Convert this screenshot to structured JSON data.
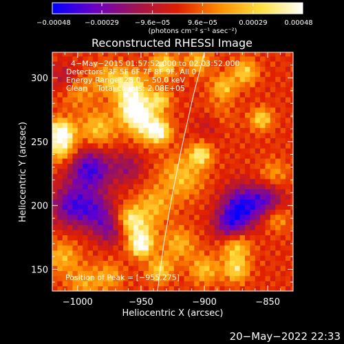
{
  "chart_data": {
    "type": "heatmap",
    "title": "Reconstructed RHESSI Image",
    "xlabel": "Heliocentric X (arcsec)",
    "ylabel": "Heliocentric Y (arcsec)",
    "xlim": [
      -1020,
      -830
    ],
    "ylim": [
      133,
      320
    ],
    "xticks": [
      -1000,
      -950,
      -900,
      -850
    ],
    "yticks": [
      150,
      200,
      250,
      300
    ],
    "xtick_labels": [
      "−1000",
      "−950",
      "−900",
      "−850"
    ],
    "ytick_labels": [
      "150",
      "200",
      "250",
      "300"
    ],
    "colorbar": {
      "min": -0.00048,
      "max": 0.00048,
      "ticks": [
        -0.00048,
        -0.00029,
        -9.6e-05,
        9.6e-05,
        0.00029,
        0.00048
      ],
      "tick_labels": [
        "−0.00048",
        "−0.00029",
        "−9.6e−05",
        "9.6e−05",
        "0.00029",
        "0.00048"
      ],
      "unit_label": "(photons cm⁻² s⁻¹ asec⁻²)",
      "colors": [
        "#0000ff",
        "#6a00c8",
        "#a01450",
        "#e01e00",
        "#ff8c00",
        "#ffe040",
        "#ffffff"
      ]
    },
    "annotations": [
      "4−May−2015 01:57:52.000 to 02:03:52.000",
      "Detectors: 3F 5F 6F 7F 8F 9F, All 0",
      "Energy Range: 25.0 − 50.0 keV",
      "Clean    Total counts: 2.08E+05",
      "Position of Peak = [−955,275]"
    ],
    "peak": {
      "x": -955,
      "y": 275
    },
    "limb_curve": [
      [
        -937,
        133
      ],
      [
        -932,
        170
      ],
      [
        -926,
        205
      ],
      [
        -918,
        245
      ],
      [
        -909,
        285
      ],
      [
        -900,
        320
      ]
    ],
    "blobs": [
      {
        "x": -955,
        "y": 275,
        "v": 0.00048,
        "r": 9
      },
      {
        "x": -958,
        "y": 293,
        "v": 0.00034,
        "r": 9
      },
      {
        "x": -945,
        "y": 262,
        "v": 0.0003,
        "r": 9
      },
      {
        "x": -935,
        "y": 258,
        "v": 0.00036,
        "r": 6
      },
      {
        "x": -1013,
        "y": 258,
        "v": 0.00046,
        "r": 7
      },
      {
        "x": -1013,
        "y": 245,
        "v": 0.00032,
        "r": 8
      },
      {
        "x": -984,
        "y": 260,
        "v": 0.00026,
        "r": 10
      },
      {
        "x": -932,
        "y": 310,
        "v": 0.00032,
        "r": 7
      },
      {
        "x": -935,
        "y": 283,
        "v": 0.0003,
        "r": 6
      },
      {
        "x": -903,
        "y": 240,
        "v": 0.00035,
        "r": 6
      },
      {
        "x": -918,
        "y": 223,
        "v": 0.00024,
        "r": 12
      },
      {
        "x": -958,
        "y": 190,
        "v": 0.0003,
        "r": 7
      },
      {
        "x": -950,
        "y": 168,
        "v": 0.00038,
        "r": 6
      },
      {
        "x": -950,
        "y": 178,
        "v": 0.00028,
        "r": 8
      },
      {
        "x": -940,
        "y": 200,
        "v": 0.00022,
        "r": 10
      },
      {
        "x": -935,
        "y": 150,
        "v": 0.00028,
        "r": 7
      },
      {
        "x": -920,
        "y": 170,
        "v": 0.00022,
        "r": 9
      },
      {
        "x": -875,
        "y": 168,
        "v": 0.00028,
        "r": 8
      },
      {
        "x": -875,
        "y": 150,
        "v": 0.0003,
        "r": 7
      },
      {
        "x": -900,
        "y": 150,
        "v": 0.00024,
        "r": 8
      },
      {
        "x": -855,
        "y": 268,
        "v": 0.0003,
        "r": 6
      },
      {
        "x": -868,
        "y": 305,
        "v": 0.00028,
        "r": 7
      },
      {
        "x": -885,
        "y": 293,
        "v": 0.00025,
        "r": 7
      },
      {
        "x": -905,
        "y": 313,
        "v": 0.00024,
        "r": 7
      },
      {
        "x": -1012,
        "y": 160,
        "v": 0.00022,
        "r": 9
      },
      {
        "x": -995,
        "y": 140,
        "v": 0.00018,
        "r": 9
      },
      {
        "x": -975,
        "y": 145,
        "v": 0.00018,
        "r": 8
      },
      {
        "x": -975,
        "y": 300,
        "v": 0.0002,
        "r": 9
      },
      {
        "x": -1000,
        "y": 290,
        "v": 0.00016,
        "r": 10
      },
      {
        "x": -843,
        "y": 190,
        "v": 0.00018,
        "r": 7
      },
      {
        "x": -845,
        "y": 225,
        "v": 0.00016,
        "r": 8
      },
      {
        "x": -890,
        "y": 270,
        "v": 0.00014,
        "r": 9
      },
      {
        "x": -990,
        "y": 228,
        "v": -0.0004,
        "r": 12
      },
      {
        "x": -1005,
        "y": 200,
        "v": -0.00034,
        "r": 11
      },
      {
        "x": -985,
        "y": 195,
        "v": -0.00028,
        "r": 10
      },
      {
        "x": -870,
        "y": 200,
        "v": -0.00042,
        "r": 11
      },
      {
        "x": -880,
        "y": 185,
        "v": -0.0003,
        "r": 9
      },
      {
        "x": -850,
        "y": 205,
        "v": -0.00026,
        "r": 9
      },
      {
        "x": -960,
        "y": 230,
        "v": -0.00018,
        "r": 9
      },
      {
        "x": -895,
        "y": 265,
        "v": -0.00016,
        "r": 8
      },
      {
        "x": -975,
        "y": 180,
        "v": -0.0002,
        "r": 8
      },
      {
        "x": -1010,
        "y": 300,
        "v": -0.00016,
        "r": 8
      }
    ]
  },
  "timestamp": "20−May−2022 22:33"
}
